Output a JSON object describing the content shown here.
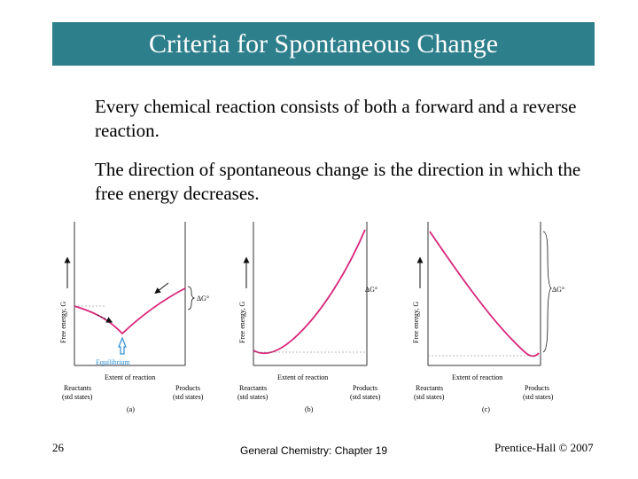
{
  "title": "Criteria for Spontaneous Change",
  "paragraphs": [
    "Every chemical reaction consists of both a forward and a reverse reaction.",
    "The direction of spontaneous change is the direction in which the free energy decreases."
  ],
  "figure": {
    "y_axis_label": "Free energy, G",
    "x_axis_label": "Extent of reaction",
    "reactants_label": "Reactants",
    "products_label": "Products",
    "std_states_label": "(std states)",
    "delta_g_label": "ΔG°",
    "equilibrium_label": "Equilibrium",
    "panel_labels": [
      "(a)",
      "(b)",
      "(c)"
    ],
    "curve_color": "#d8247a",
    "equilibrium_color": "#2a8fd4"
  },
  "footer": {
    "slide_number": "26",
    "center": "General Chemistry: Chapter 19",
    "right": "Prentice-Hall © 2007"
  }
}
